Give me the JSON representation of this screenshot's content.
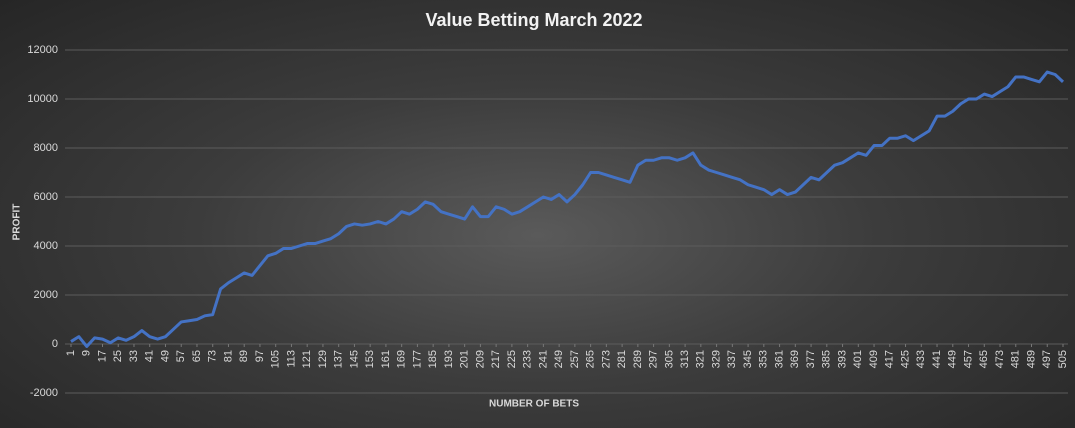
{
  "chart_data": {
    "type": "line",
    "title": "Value Betting March 2022",
    "x_label": "NUMBER OF BETS",
    "y_label": "PROFIT",
    "color": "#4472c4",
    "grid": true,
    "xlim": [
      1,
      505
    ],
    "xticks": [
      1,
      9,
      17,
      25,
      33,
      41,
      49,
      57,
      65,
      73,
      81,
      89,
      97,
      105,
      113,
      121,
      129,
      137,
      145,
      153,
      161,
      169,
      177,
      185,
      193,
      201,
      209,
      217,
      225,
      233,
      241,
      249,
      257,
      265,
      273,
      281,
      289,
      297,
      305,
      313,
      321,
      329,
      337,
      345,
      353,
      361,
      369,
      377,
      385,
      393,
      401,
      409,
      417,
      425,
      433,
      441,
      449,
      457,
      465,
      473,
      481,
      489,
      497,
      505
    ],
    "ylim": [
      -2000,
      12000
    ],
    "yticks": [
      -2000,
      0,
      2000,
      4000,
      6000,
      8000,
      10000,
      12000
    ],
    "x": [
      1,
      5,
      9,
      13,
      17,
      21,
      25,
      29,
      33,
      37,
      41,
      45,
      49,
      53,
      57,
      61,
      65,
      69,
      73,
      77,
      81,
      85,
      89,
      93,
      97,
      101,
      105,
      109,
      113,
      117,
      121,
      125,
      129,
      133,
      137,
      141,
      145,
      149,
      153,
      157,
      161,
      165,
      169,
      173,
      177,
      181,
      185,
      189,
      193,
      197,
      201,
      205,
      209,
      213,
      217,
      221,
      225,
      229,
      233,
      237,
      241,
      245,
      249,
      253,
      257,
      261,
      265,
      269,
      273,
      277,
      281,
      285,
      289,
      293,
      297,
      301,
      305,
      309,
      313,
      317,
      321,
      325,
      329,
      333,
      337,
      341,
      345,
      349,
      353,
      357,
      361,
      365,
      369,
      373,
      377,
      381,
      385,
      389,
      393,
      397,
      401,
      405,
      409,
      413,
      417,
      421,
      425,
      429,
      433,
      437,
      441,
      445,
      449,
      453,
      457,
      461,
      465,
      469,
      473,
      477,
      481,
      485,
      489,
      493,
      497,
      501,
      505
    ],
    "values": [
      100,
      300,
      -100,
      250,
      200,
      50,
      250,
      150,
      300,
      550,
      300,
      200,
      300,
      600,
      900,
      950,
      1000,
      1150,
      1200,
      2250,
      2500,
      2700,
      2900,
      2800,
      3200,
      3600,
      3700,
      3900,
      3900,
      4000,
      4100,
      4100,
      4200,
      4300,
      4500,
      4800,
      4900,
      4850,
      4900,
      5000,
      4900,
      5100,
      5400,
      5300,
      5500,
      5800,
      5700,
      5400,
      5300,
      5200,
      5100,
      5600,
      5200,
      5200,
      5600,
      5500,
      5300,
      5400,
      5600,
      5800,
      6000,
      5900,
      6100,
      5800,
      6100,
      6500,
      7000,
      7000,
      6900,
      6800,
      6700,
      6600,
      7300,
      7500,
      7500,
      7600,
      7600,
      7500,
      7600,
      7800,
      7300,
      7100,
      7000,
      6900,
      6800,
      6700,
      6500,
      6400,
      6300,
      6100,
      6300,
      6100,
      6200,
      6500,
      6800,
      6700,
      7000,
      7300,
      7400,
      7600,
      7800,
      7700,
      8100,
      8100,
      8400,
      8400,
      8500,
      8300,
      8500,
      8700,
      9300,
      9300,
      9500,
      9800,
      10000,
      10000,
      10200,
      10100,
      10300,
      10500,
      10900,
      10900,
      10800,
      10700,
      11100,
      11000,
      10700
    ]
  }
}
